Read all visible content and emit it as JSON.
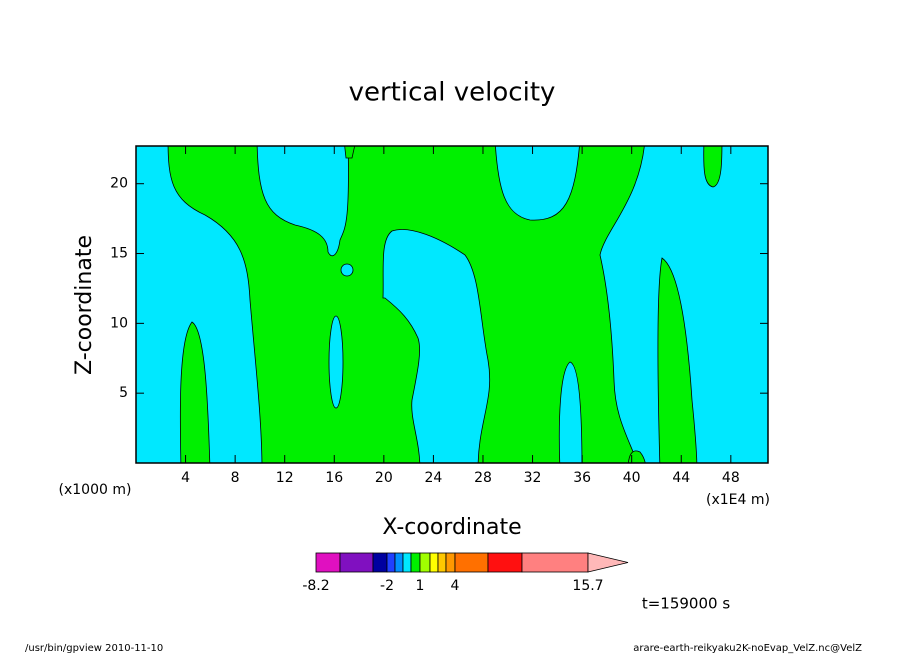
{
  "chart_data": {
    "type": "contour",
    "title": "vertical velocity",
    "x_label": "X-coordinate",
    "y_label": "Z-coordinate",
    "x_unit_left": "(x1000 m)",
    "x_unit_right": "(x1E4 m)",
    "time_label": "t=159000 s",
    "footer_left": "/usr/bin/gpview  2010-11-10",
    "footer_right": "arare-earth-reikyaku2K-noEvap_VelZ.nc@VelZ",
    "xlim": [
      0,
      51
    ],
    "xticks": [
      4,
      8,
      12,
      16,
      20,
      24,
      28,
      32,
      36,
      40,
      44,
      48
    ],
    "ylim": [
      0,
      22.7
    ],
    "yticks": [
      5,
      10,
      15,
      20
    ],
    "colorbar": {
      "levels": [
        -8.2,
        null,
        null,
        -2,
        null,
        null,
        null,
        1,
        null,
        null,
        null,
        4,
        null,
        null,
        15.7
      ],
      "colors": [
        "#e010c0",
        "#8010c0",
        "#0000a0",
        "#2040ff",
        "#0090ff",
        "#00e8ff",
        "#00f000",
        "#a0ff00",
        "#ffff00",
        "#ffc800",
        "#ff9800",
        "#ff7000",
        "#ff1010",
        "#ff8080"
      ],
      "extend_color": "#ffb8b8"
    }
  }
}
